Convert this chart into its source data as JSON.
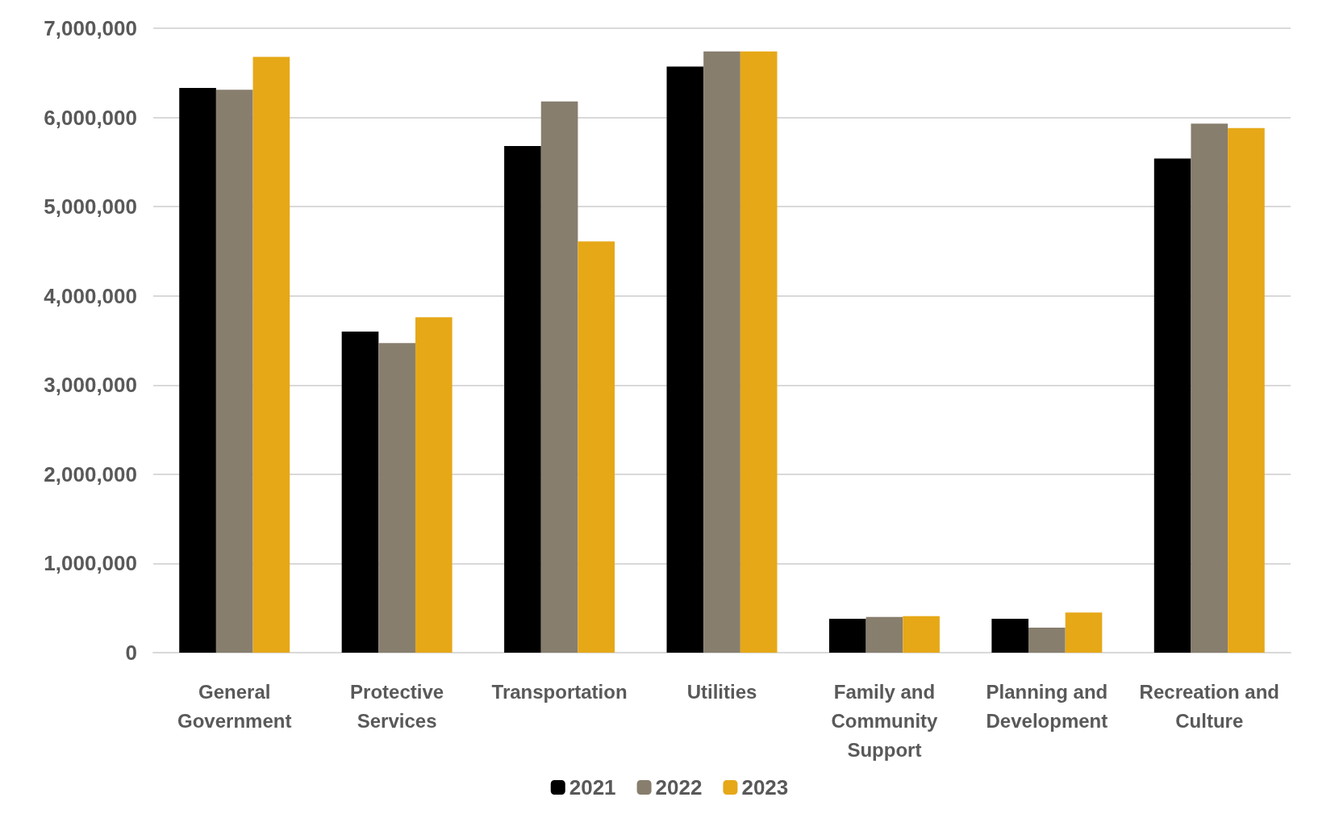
{
  "chart_data": {
    "type": "bar",
    "categories": [
      "General Government",
      "Protective Services",
      "Transportation",
      "Utilities",
      "Family and Community Support",
      "Planning and Development",
      "Recreation and Culture"
    ],
    "series": [
      {
        "name": "2021",
        "color": "#000000",
        "values": [
          6330000,
          3600000,
          5680000,
          6570000,
          380000,
          380000,
          5540000
        ]
      },
      {
        "name": "2022",
        "color": "#877e6e",
        "values": [
          6310000,
          3470000,
          6180000,
          6740000,
          400000,
          280000,
          5930000
        ]
      },
      {
        "name": "2023",
        "color": "#e6a817",
        "values": [
          6680000,
          3760000,
          4610000,
          6740000,
          410000,
          450000,
          5880000
        ]
      }
    ],
    "ylim": [
      0,
      7000000
    ],
    "yticks": [
      0,
      {
        "value": 1000000,
        "label": "1,000,000"
      },
      {
        "value": 2000000,
        "label": "2,000,000"
      },
      {
        "value": 3000000,
        "label": "3,000,000"
      },
      {
        "value": 4000000,
        "label": "4,000,000"
      },
      {
        "value": 5000000,
        "label": "5,000,000"
      },
      {
        "value": 6000000,
        "label": "6,000,000"
      },
      {
        "value": 7000000,
        "label": "7,000,000"
      }
    ],
    "grid": "y",
    "legend": "bottom"
  }
}
